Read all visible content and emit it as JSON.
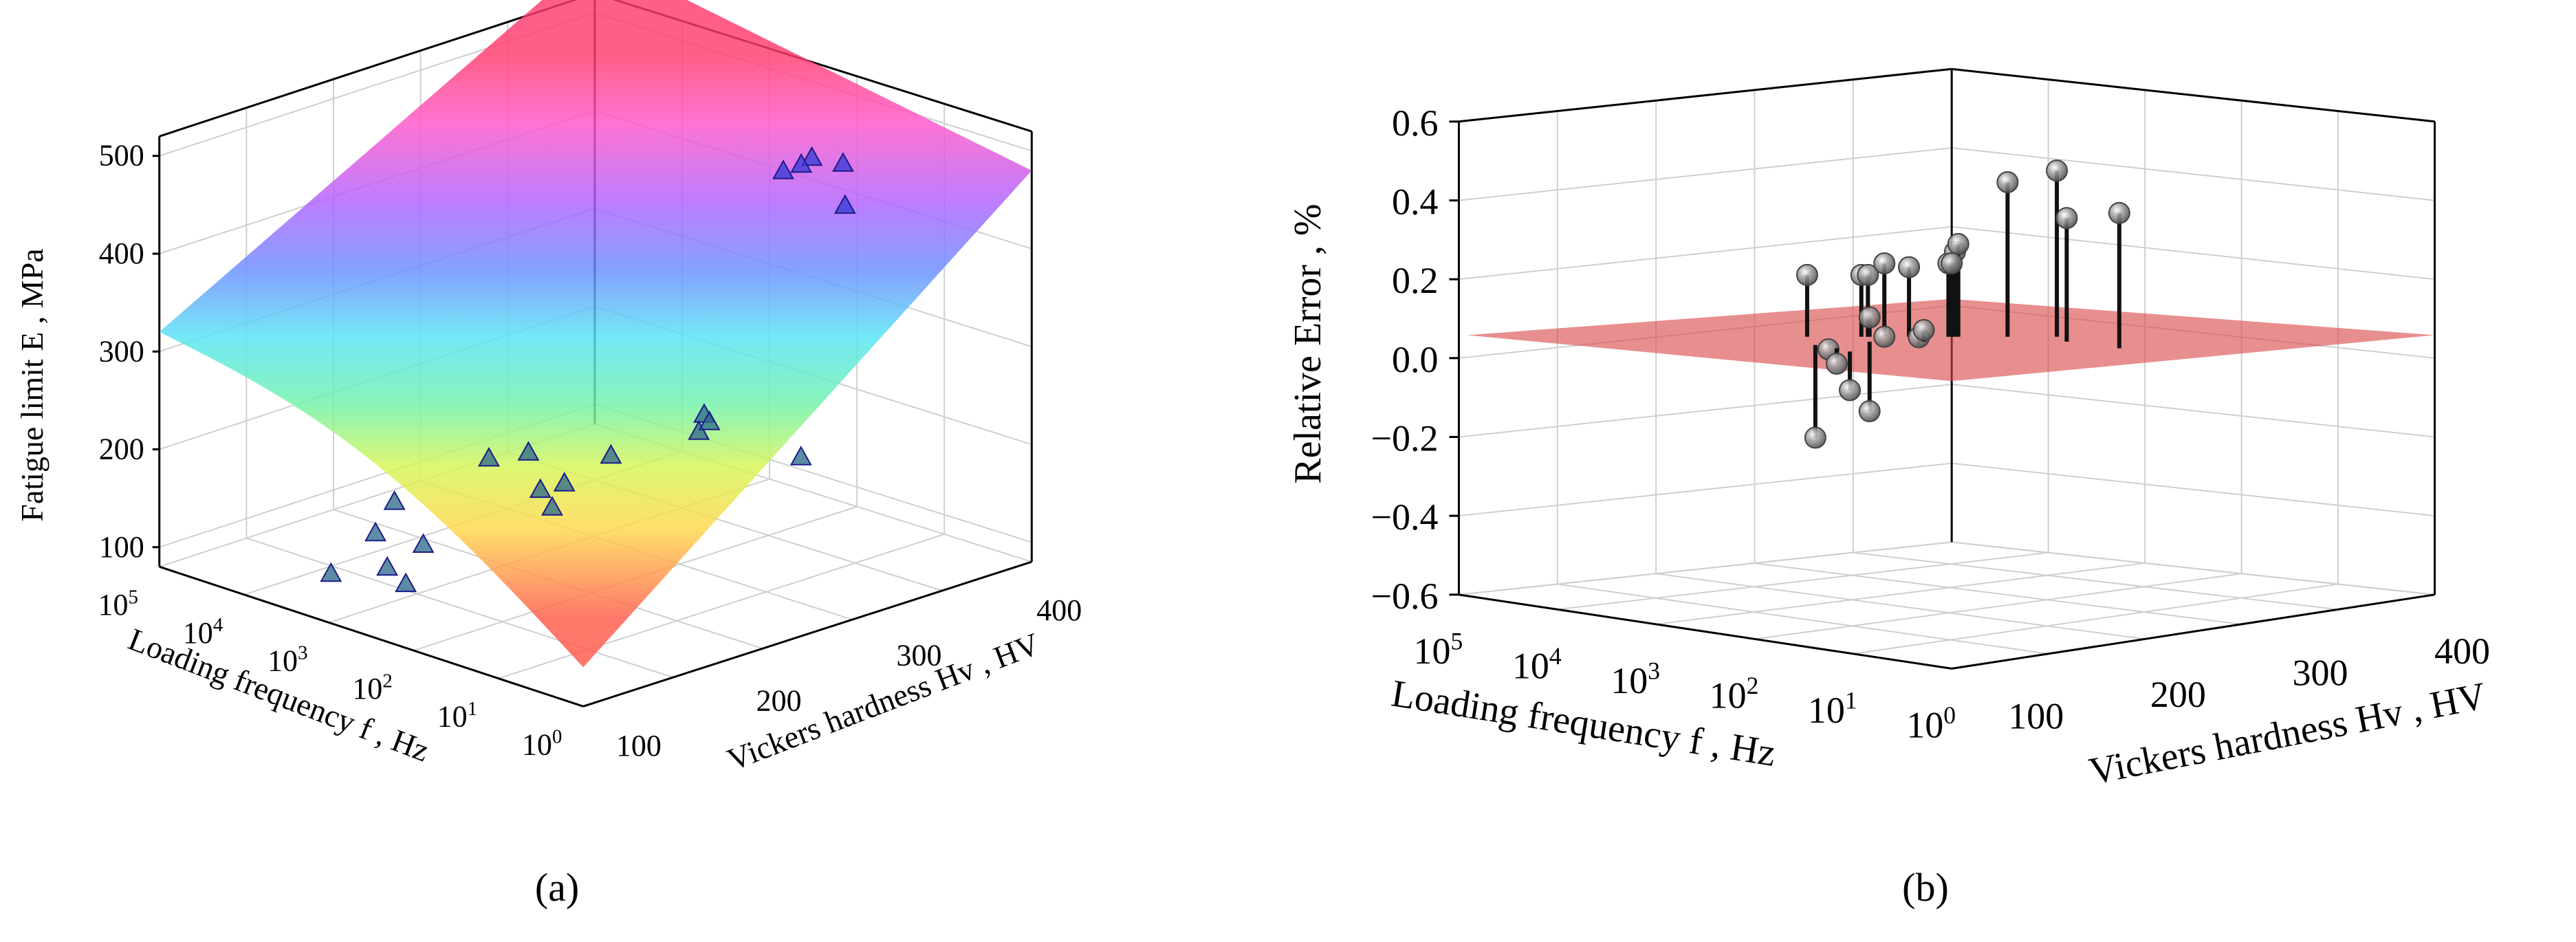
{
  "chart_data": [
    {
      "type": "3d-surface-scatter",
      "panel_label": "(a)",
      "zlabel": "Fatigue limit E , MPa",
      "xlabel": "Loading frequency f , Hz",
      "ylabel": "Vickers hardness Hv , HV",
      "x_ticks": [
        "10^5",
        "10^4",
        "10^3",
        "10^2",
        "10^1",
        "10^0"
      ],
      "y_ticks": [
        "100",
        "200",
        "300",
        "400"
      ],
      "z_ticks": [
        "100",
        "200",
        "300",
        "400",
        "500"
      ],
      "zlim": [
        80,
        520
      ],
      "surface_corners": {
        "f_1e0_Hv_400": 480,
        "f_1e5_Hv_80": 320,
        "f_1e0_Hv_80": 120,
        "f_1e5_Hv_400": 560
      },
      "series": [
        {
          "name": "measured",
          "marker": "triangle",
          "points": [
            {
              "logf": 2.2,
              "Hv": 380,
              "E": 440
            },
            {
              "logf": 2.0,
              "Hv": 390,
              "E": 435
            },
            {
              "logf": 2.4,
              "Hv": 385,
              "E": 425
            },
            {
              "logf": 1.5,
              "Hv": 360,
              "E": 420
            },
            {
              "logf": 3.0,
              "Hv": 410,
              "E": 390
            },
            {
              "logf": 1.2,
              "Hv": 240,
              "E": 270
            },
            {
              "logf": 1.1,
              "Hv": 230,
              "E": 260
            },
            {
              "logf": 1.3,
              "Hv": 250,
              "E": 255
            },
            {
              "logf": 0.4,
              "Hv": 260,
              "E": 240
            },
            {
              "logf": 1.8,
              "Hv": 210,
              "E": 225
            },
            {
              "logf": 2.6,
              "Hv": 200,
              "E": 210
            },
            {
              "logf": 2.9,
              "Hv": 190,
              "E": 200
            },
            {
              "logf": 2.1,
              "Hv": 195,
              "E": 195
            },
            {
              "logf": 2.3,
              "Hv": 190,
              "E": 185
            },
            {
              "logf": 2.0,
              "Hv": 180,
              "E": 180
            },
            {
              "logf": 3.2,
              "Hv": 140,
              "E": 170
            },
            {
              "logf": 3.1,
              "Hv": 120,
              "E": 150
            },
            {
              "logf": 2.7,
              "Hv": 130,
              "E": 145
            },
            {
              "logf": 2.8,
              "Hv": 110,
              "E": 128
            },
            {
              "logf": 2.5,
              "Hv": 105,
              "E": 122
            },
            {
              "logf": 3.3,
              "Hv": 100,
              "E": 112
            }
          ]
        }
      ]
    },
    {
      "type": "3d-stem",
      "panel_label": "(b)",
      "zlabel": "Relative Error , %",
      "xlabel": "Loading frequency f , Hz",
      "ylabel": "Vickers hardness Hv , HV",
      "x_ticks": [
        "10^5",
        "10^4",
        "10^3",
        "10^2",
        "10^1",
        "10^0"
      ],
      "y_ticks": [
        "100",
        "200",
        "300",
        "400"
      ],
      "z_ticks": [
        "0.6",
        "0.4",
        "0.2",
        "0.0",
        "−0.2",
        "−0.4",
        "−0.6"
      ],
      "zlim": [
        -0.6,
        0.6
      ],
      "reference_plane": 0.0,
      "series": [
        {
          "name": "relative error",
          "marker": "sphere",
          "points": [
            {
              "id": 1,
              "z": 0.16
            },
            {
              "id": 2,
              "z": -0.24
            },
            {
              "id": 3,
              "z": -0.02
            },
            {
              "id": 4,
              "z": -0.04
            },
            {
              "id": 5,
              "z": -0.1
            },
            {
              "id": 6,
              "z": 0.16
            },
            {
              "id": 7,
              "z": 0.16
            },
            {
              "id": 8,
              "z": 0.05
            },
            {
              "id": 9,
              "z": -0.18
            },
            {
              "id": 10,
              "z": 0.19
            },
            {
              "id": 11,
              "z": 0.0
            },
            {
              "id": 12,
              "z": 0.18
            },
            {
              "id": 13,
              "z": 0.02
            },
            {
              "id": 14,
              "z": 0.03
            },
            {
              "id": 15,
              "z": 0.19
            },
            {
              "id": 16,
              "z": 0.22
            },
            {
              "id": 17,
              "z": 0.24
            },
            {
              "id": 18,
              "z": 0.19
            },
            {
              "id": 19,
              "z": 0.4
            },
            {
              "id": 20,
              "z": 0.43
            },
            {
              "id": 21,
              "z": 0.32
            },
            {
              "id": 22,
              "z": 0.35
            }
          ]
        }
      ]
    }
  ]
}
